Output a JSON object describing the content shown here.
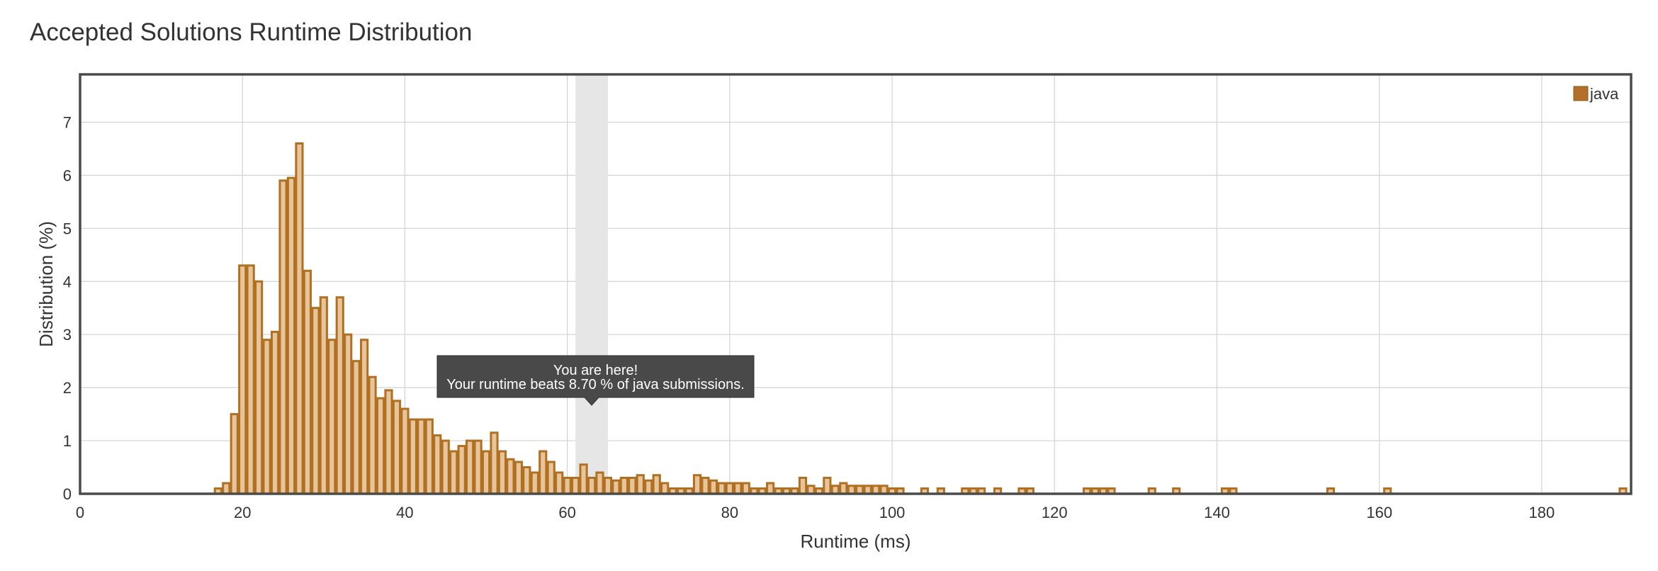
{
  "page": {
    "title": "Accepted Solutions Runtime Distribution"
  },
  "tooltip": {
    "line1": "You are here!",
    "line2": "Your runtime beats 8.70 % of java submissions.",
    "runtime_ms": 63
  },
  "colors": {
    "bar_fill": "#e8c49a",
    "bar_stroke": "#b07021",
    "legend_swatch": "#b46f28",
    "highlight_band": "#e6e6e6",
    "grid": "#d3d3d3",
    "frame": "#4a4a4a",
    "tooltip_bg": "#494949",
    "tooltip_text": "#ffffff"
  },
  "chart_data": {
    "type": "bar",
    "xlabel": "Runtime (ms)",
    "ylabel": "Distribution (%)",
    "xlim": [
      0,
      191
    ],
    "ylim": [
      0,
      7.9
    ],
    "xticks": [
      0,
      20,
      40,
      60,
      80,
      100,
      120,
      140,
      160,
      180
    ],
    "yticks": [
      0,
      1,
      2,
      3,
      4,
      5,
      6,
      7
    ],
    "grid": true,
    "legend_position": "top-right",
    "highlight_range": [
      61,
      65
    ],
    "series": [
      {
        "name": "java",
        "bin_width": 0.8,
        "x": [
          17,
          18,
          19,
          20,
          21,
          22,
          23,
          24,
          25,
          26,
          27,
          28,
          29,
          30,
          31,
          32,
          33,
          34,
          35,
          36,
          37,
          38,
          39,
          40,
          41,
          42,
          43,
          44,
          45,
          46,
          47,
          48,
          49,
          50,
          51,
          52,
          53,
          54,
          55,
          56,
          57,
          58,
          59,
          60,
          61,
          62,
          63,
          64,
          65,
          66,
          67,
          68,
          69,
          70,
          71,
          72,
          73,
          74,
          75,
          76,
          77,
          78,
          79,
          80,
          81,
          82,
          83,
          84,
          85,
          86,
          87,
          88,
          89,
          90,
          91,
          92,
          93,
          94,
          95,
          96,
          97,
          98,
          99,
          100,
          101,
          104,
          106,
          109,
          110,
          111,
          113,
          116,
          117,
          124,
          125,
          126,
          127,
          132,
          135,
          141,
          142,
          154,
          161,
          190
        ],
        "values": [
          0.1,
          0.2,
          1.5,
          4.3,
          4.3,
          4.0,
          2.9,
          3.05,
          5.9,
          5.95,
          6.6,
          4.2,
          3.5,
          3.7,
          2.9,
          3.7,
          3.0,
          2.5,
          2.9,
          2.2,
          1.8,
          1.95,
          1.75,
          1.6,
          1.4,
          1.4,
          1.4,
          1.1,
          1.0,
          0.8,
          0.9,
          1.0,
          1.0,
          0.8,
          1.15,
          0.8,
          0.65,
          0.6,
          0.5,
          0.4,
          0.8,
          0.6,
          0.4,
          0.3,
          0.3,
          0.55,
          0.3,
          0.4,
          0.3,
          0.25,
          0.3,
          0.3,
          0.35,
          0.25,
          0.35,
          0.2,
          0.1,
          0.1,
          0.1,
          0.35,
          0.3,
          0.25,
          0.2,
          0.2,
          0.2,
          0.2,
          0.1,
          0.1,
          0.2,
          0.1,
          0.1,
          0.1,
          0.3,
          0.15,
          0.1,
          0.3,
          0.15,
          0.2,
          0.15,
          0.15,
          0.15,
          0.15,
          0.15,
          0.1,
          0.1,
          0.1,
          0.1,
          0.1,
          0.1,
          0.1,
          0.1,
          0.1,
          0.1,
          0.1,
          0.1,
          0.1,
          0.1,
          0.1,
          0.1,
          0.1,
          0.1,
          0.1,
          0.1,
          0.1
        ]
      }
    ]
  }
}
